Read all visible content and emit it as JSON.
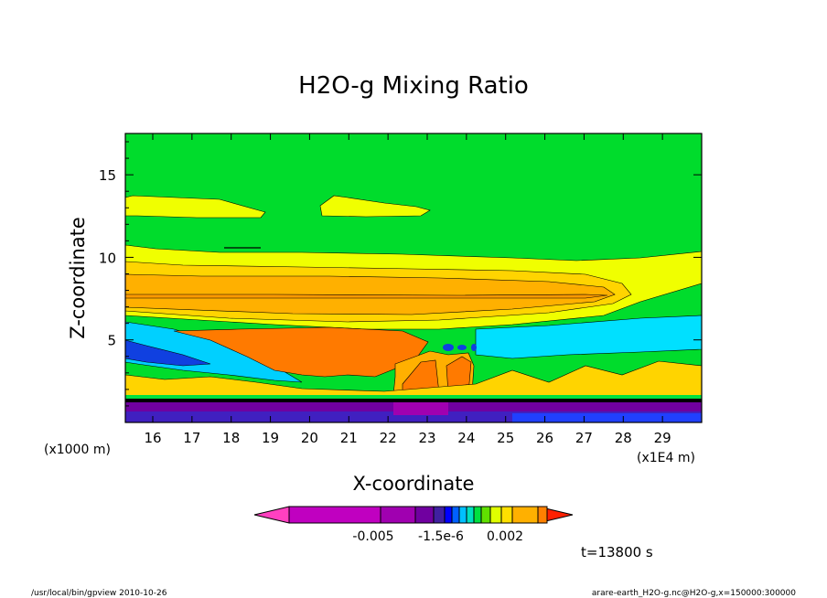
{
  "chart_data": {
    "type": "heatmap",
    "title": "H2O-g Mixing Ratio",
    "xlabel": "X-coordinate",
    "ylabel": "Z-coordinate",
    "x_unit_left": "(x1000 m)",
    "x_unit_right": "(x1E4 m)",
    "xlim": [
      15.3,
      30
    ],
    "ylim": [
      0,
      17.5
    ],
    "x_ticks": [
      "16",
      "17",
      "18",
      "19",
      "20",
      "21",
      "22",
      "23",
      "24",
      "25",
      "26",
      "27",
      "28",
      "29"
    ],
    "y_ticks": [
      "5",
      "10",
      "15"
    ],
    "colorbar": {
      "labels": [
        "-0.005",
        "-1.5e-6",
        "0.002"
      ],
      "colors": [
        "#ff40c0",
        "#c000c0",
        "#a000b0",
        "#7000a0",
        "#4020a0",
        "#0000ff",
        "#0060ff",
        "#00c0ff",
        "#00e0c0",
        "#00e040",
        "#60e000",
        "#e0ff00",
        "#ffe000",
        "#ffb000",
        "#ff8000",
        "#ff2000"
      ]
    },
    "time_label": "t=13800 s"
  },
  "footer": {
    "left": "/usr/local/bin/gpview  2010-10-26",
    "right": "arare-earth_H2O-g.nc@H2O-g,x=150000:300000"
  }
}
